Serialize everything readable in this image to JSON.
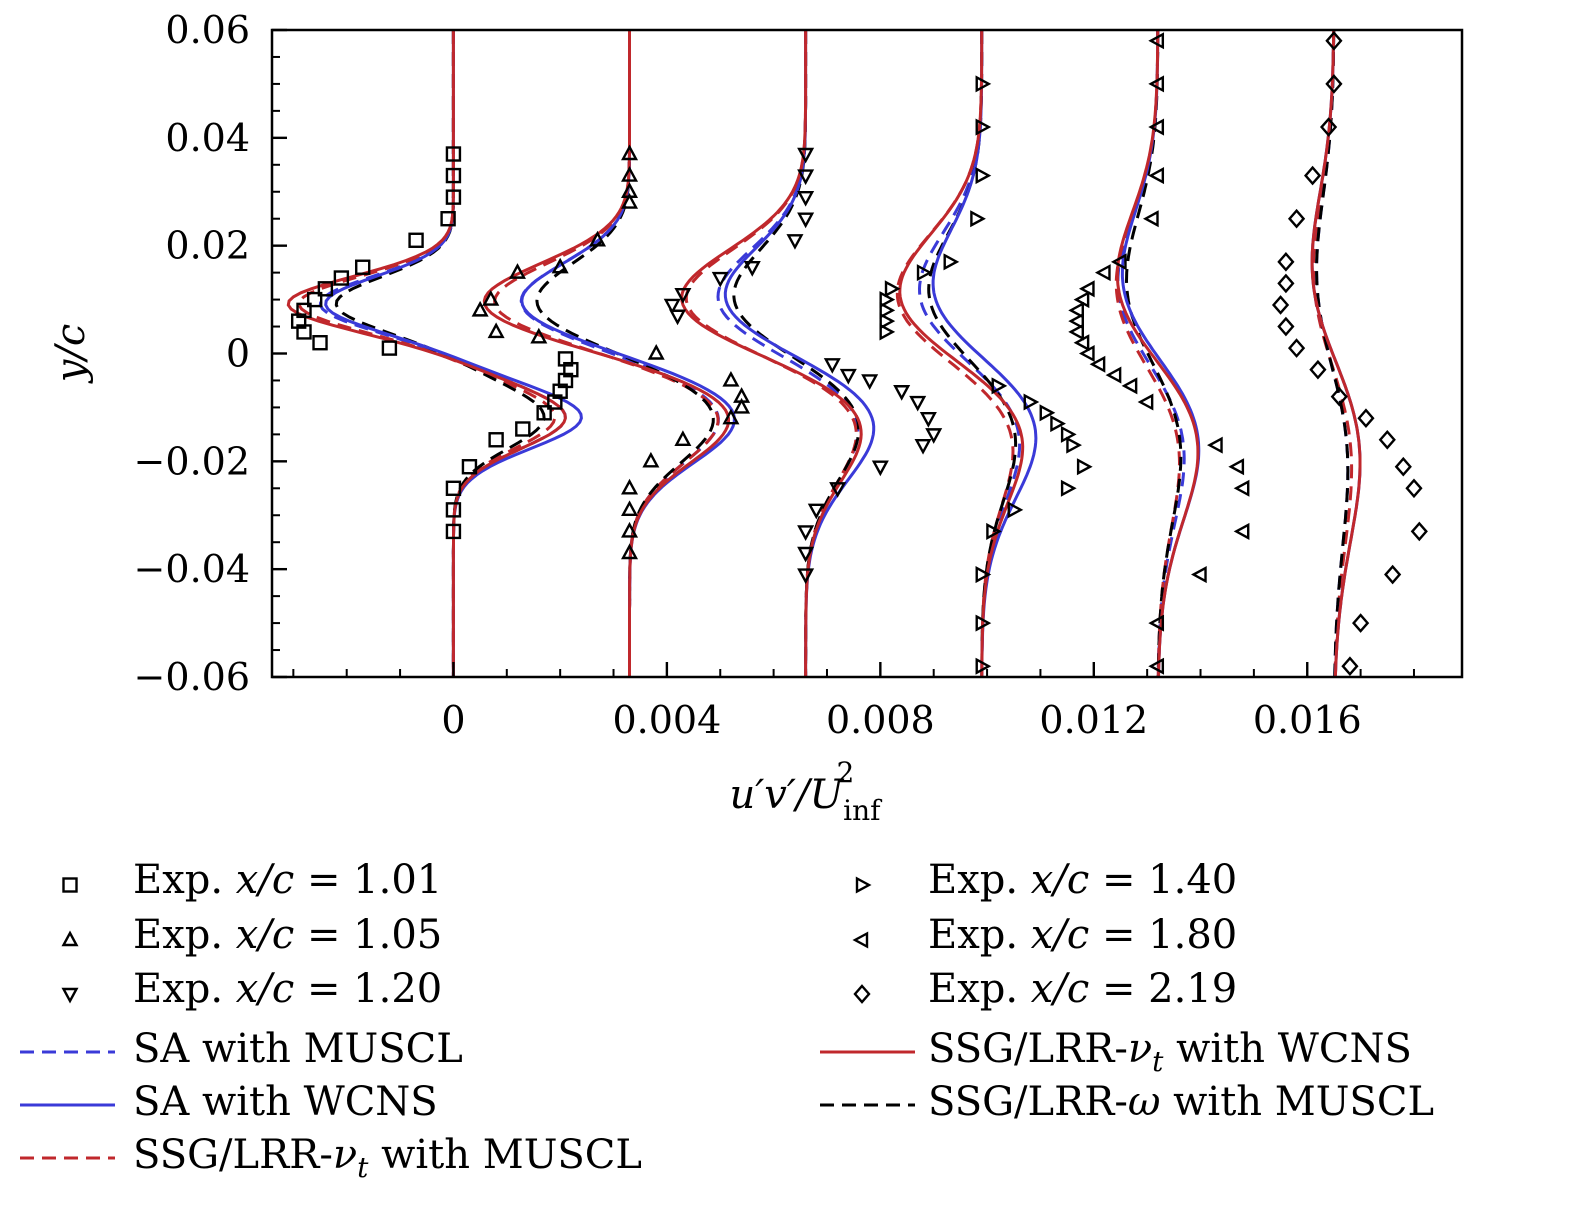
{
  "chart_data": {
    "type": "line",
    "xlabel": "u′v′/U²inf",
    "ylabel": "y/c",
    "xlim": [
      -0.0034,
      0.0189
    ],
    "ylim": [
      -0.06,
      0.06
    ],
    "x_ticks": [
      {
        "value": 0,
        "label": "0"
      },
      {
        "value": 0.004,
        "label": "0.004"
      },
      {
        "value": 0.008,
        "label": "0.008"
      },
      {
        "value": 0.012,
        "label": "0.012"
      },
      {
        "value": 0.016,
        "label": "0.016"
      }
    ],
    "y_ticks": [
      {
        "value": 0.06,
        "label": "0.06"
      },
      {
        "value": 0.04,
        "label": "0.04"
      },
      {
        "value": 0.02,
        "label": "0.02"
      },
      {
        "value": 0,
        "label": "0"
      },
      {
        "value": -0.02,
        "label": "−0.02"
      },
      {
        "value": -0.04,
        "label": "−0.04"
      },
      {
        "value": -0.06,
        "label": "−0.06"
      }
    ],
    "stations": [
      {
        "name": "x/c = 1.01",
        "offset": 0.0,
        "marker": "square"
      },
      {
        "name": "x/c = 1.05",
        "offset": 0.0033,
        "marker": "triangle-up"
      },
      {
        "name": "x/c = 1.20",
        "offset": 0.0066,
        "marker": "triangle-down"
      },
      {
        "name": "x/c = 1.40",
        "offset": 0.0099,
        "marker": "triangle-right"
      },
      {
        "name": "x/c = 1.80",
        "offset": 0.0132,
        "marker": "triangle-left"
      },
      {
        "name": "x/c = 2.19",
        "offset": 0.0165,
        "marker": "diamond"
      }
    ],
    "experiment": [
      {
        "station": "x/c = 1.01",
        "points": [
          [
            0,
            0.037
          ],
          [
            0,
            0.033
          ],
          [
            0,
            0.029
          ],
          [
            -0.0001,
            0.025
          ],
          [
            -0.0007,
            0.021
          ],
          [
            -0.0017,
            0.016
          ],
          [
            -0.0021,
            0.014
          ],
          [
            -0.0024,
            0.012
          ],
          [
            -0.0026,
            0.01
          ],
          [
            -0.0028,
            0.008
          ],
          [
            -0.0029,
            0.006
          ],
          [
            -0.0028,
            0.004
          ],
          [
            -0.0025,
            0.002
          ],
          [
            -0.0012,
            0.001
          ],
          [
            0.0021,
            -0.001
          ],
          [
            0.0022,
            -0.003
          ],
          [
            0.0021,
            -0.005
          ],
          [
            0.002,
            -0.007
          ],
          [
            0.0019,
            -0.009
          ],
          [
            0.0017,
            -0.011
          ],
          [
            0.0013,
            -0.014
          ],
          [
            0.0008,
            -0.016
          ],
          [
            0.0003,
            -0.021
          ],
          [
            0,
            -0.025
          ],
          [
            0,
            -0.029
          ],
          [
            0,
            -0.033
          ]
        ]
      },
      {
        "station": "x/c = 1.05",
        "points": [
          [
            0,
            0.037
          ],
          [
            0,
            0.033
          ],
          [
            0,
            0.03
          ],
          [
            0,
            0.028
          ],
          [
            -0.0006,
            0.021
          ],
          [
            -0.0013,
            0.016
          ],
          [
            -0.0021,
            0.015
          ],
          [
            -0.0026,
            0.01
          ],
          [
            -0.0028,
            0.008
          ],
          [
            -0.0025,
            0.004
          ],
          [
            -0.0017,
            0.003
          ],
          [
            0.0005,
            0.0
          ],
          [
            0.0019,
            -0.005
          ],
          [
            0.0021,
            -0.008
          ],
          [
            0.0021,
            -0.01
          ],
          [
            0.0019,
            -0.012
          ],
          [
            0.001,
            -0.016
          ],
          [
            0.0004,
            -0.02
          ],
          [
            0,
            -0.025
          ],
          [
            0,
            -0.029
          ],
          [
            0,
            -0.033
          ],
          [
            0,
            -0.037
          ]
        ]
      },
      {
        "station": "x/c = 1.20",
        "points": [
          [
            0,
            0.037
          ],
          [
            0,
            0.033
          ],
          [
            0,
            0.029
          ],
          [
            0,
            0.025
          ],
          [
            -0.0002,
            0.021
          ],
          [
            -0.001,
            0.016
          ],
          [
            -0.0016,
            0.014
          ],
          [
            -0.0023,
            0.011
          ],
          [
            -0.0025,
            0.009
          ],
          [
            -0.0024,
            0.007
          ],
          [
            0.0005,
            -0.002
          ],
          [
            0.0008,
            -0.004
          ],
          [
            0.0012,
            -0.005
          ],
          [
            0.0018,
            -0.007
          ],
          [
            0.0021,
            -0.009
          ],
          [
            0.0023,
            -0.012
          ],
          [
            0.0024,
            -0.015
          ],
          [
            0.0022,
            -0.017
          ],
          [
            0.0014,
            -0.021
          ],
          [
            0.0006,
            -0.025
          ],
          [
            0.0002,
            -0.029
          ],
          [
            0,
            -0.033
          ],
          [
            0,
            -0.037
          ],
          [
            0,
            -0.041
          ]
        ]
      },
      {
        "station": "x/c = 1.40",
        "points": [
          [
            0,
            0.05
          ],
          [
            0,
            0.042
          ],
          [
            0,
            0.033
          ],
          [
            -0.0001,
            0.025
          ],
          [
            -0.0006,
            0.017
          ],
          [
            -0.0011,
            0.015
          ],
          [
            -0.0017,
            0.012
          ],
          [
            -0.0018,
            0.01
          ],
          [
            -0.0018,
            0.008
          ],
          [
            -0.0018,
            0.006
          ],
          [
            -0.0018,
            0.004
          ],
          [
            0.0003,
            -0.006
          ],
          [
            0.0009,
            -0.009
          ],
          [
            0.0012,
            -0.011
          ],
          [
            0.0014,
            -0.013
          ],
          [
            0.0016,
            -0.015
          ],
          [
            0.0017,
            -0.017
          ],
          [
            0.0019,
            -0.021
          ],
          [
            0.0016,
            -0.025
          ],
          [
            0.0006,
            -0.029
          ],
          [
            0.0002,
            -0.033
          ],
          [
            0,
            -0.041
          ],
          [
            0,
            -0.05
          ],
          [
            0,
            -0.058
          ]
        ]
      },
      {
        "station": "x/c = 1.80",
        "points": [
          [
            0,
            0.058
          ],
          [
            0,
            0.05
          ],
          [
            0,
            0.042
          ],
          [
            0,
            0.033
          ],
          [
            -0.0001,
            0.025
          ],
          [
            -0.0007,
            0.017
          ],
          [
            -0.001,
            0.015
          ],
          [
            -0.0013,
            0.012
          ],
          [
            -0.0014,
            0.01
          ],
          [
            -0.0015,
            0.008
          ],
          [
            -0.0015,
            0.006
          ],
          [
            -0.0015,
            0.004
          ],
          [
            -0.0014,
            0.002
          ],
          [
            -0.0013,
            0.0
          ],
          [
            -0.0011,
            -0.002
          ],
          [
            -0.0008,
            -0.004
          ],
          [
            -0.0005,
            -0.006
          ],
          [
            -0.0002,
            -0.009
          ],
          [
            0.0011,
            -0.017
          ],
          [
            0.0015,
            -0.021
          ],
          [
            0.0016,
            -0.025
          ],
          [
            0.0016,
            -0.033
          ],
          [
            0.0008,
            -0.041
          ],
          [
            0,
            -0.05
          ],
          [
            0,
            -0.058
          ]
        ]
      },
      {
        "station": "x/c = 2.19",
        "points": [
          [
            0,
            0.058
          ],
          [
            0,
            0.05
          ],
          [
            -0.0001,
            0.042
          ],
          [
            -0.0004,
            0.033
          ],
          [
            -0.0007,
            0.025
          ],
          [
            -0.0009,
            0.017
          ],
          [
            -0.0009,
            0.013
          ],
          [
            -0.001,
            0.009
          ],
          [
            -0.0009,
            0.005
          ],
          [
            -0.0007,
            0.001
          ],
          [
            -0.0003,
            -0.003
          ],
          [
            0.0001,
            -0.008
          ],
          [
            0.0006,
            -0.012
          ],
          [
            0.001,
            -0.016
          ],
          [
            0.0013,
            -0.021
          ],
          [
            0.0015,
            -0.025
          ],
          [
            0.0016,
            -0.033
          ],
          [
            0.0011,
            -0.041
          ],
          [
            0.0005,
            -0.05
          ],
          [
            0.0003,
            -0.058
          ]
        ]
      }
    ],
    "models": [
      {
        "name": "SA with MUSCL",
        "color": "#3a3ad8",
        "dash": "dashed",
        "peaks": [
          {
            "neg": -0.0025,
            "pos": 0.0021
          },
          {
            "neg": -0.0021,
            "pos": 0.0017
          },
          {
            "neg": -0.0018,
            "pos": 0.0011
          },
          {
            "neg": -0.0014,
            "pos": 0.0009
          },
          {
            "neg": -0.001,
            "pos": 0.0007
          },
          {
            "neg": -0.0005,
            "pos": 0.0004
          }
        ]
      },
      {
        "name": "SA with WCNS",
        "color": "#3a3ad8",
        "dash": "solid",
        "peaks": [
          {
            "neg": -0.0024,
            "pos": 0.0024
          },
          {
            "neg": -0.0021,
            "pos": 0.002
          },
          {
            "neg": -0.0017,
            "pos": 0.0014
          },
          {
            "neg": -0.0012,
            "pos": 0.0012
          },
          {
            "neg": -0.001,
            "pos": 0.001
          },
          {
            "neg": -0.0007,
            "pos": 0.0007
          }
        ]
      },
      {
        "name": "SSG/LRR-νt with MUSCL",
        "color": "#c0282c",
        "dash": "dashed",
        "peaks": [
          {
            "neg": -0.0029,
            "pos": 0.0019
          },
          {
            "neg": -0.0026,
            "pos": 0.0017
          },
          {
            "neg": -0.0024,
            "pos": 0.0011
          },
          {
            "neg": -0.0018,
            "pos": 0.0008
          },
          {
            "neg": -0.001,
            "pos": 0.0006
          },
          {
            "neg": -0.0006,
            "pos": 0.0005
          }
        ]
      },
      {
        "name": "SSG/LRR-νt with WCNS",
        "color": "#c0282c",
        "dash": "solid",
        "peaks": [
          {
            "neg": -0.0031,
            "pos": 0.0021
          },
          {
            "neg": -0.0028,
            "pos": 0.0019
          },
          {
            "neg": -0.0025,
            "pos": 0.0012
          },
          {
            "neg": -0.0018,
            "pos": 0.001
          },
          {
            "neg": -0.0011,
            "pos": 0.001
          },
          {
            "neg": -0.0007,
            "pos": 0.0007
          }
        ]
      },
      {
        "name": "SSG/LRR-ω with MUSCL",
        "color": "#000000",
        "dash": "dashed",
        "peaks": [
          {
            "neg": -0.0022,
            "pos": 0.0017
          },
          {
            "neg": -0.0018,
            "pos": 0.0016
          },
          {
            "neg": -0.0015,
            "pos": 0.0011
          },
          {
            "neg": -0.0012,
            "pos": 0.0008
          },
          {
            "neg": -0.0008,
            "pos": 0.0006
          },
          {
            "neg": -0.0005,
            "pos": 0.0004
          }
        ]
      }
    ],
    "legend": {
      "placement": "bottom",
      "entries": [
        {
          "symbol": "square",
          "prefix": "Exp.",
          "var": "x/c",
          "value": "1.01"
        },
        {
          "symbol": "triangle-up",
          "prefix": "Exp.",
          "var": "x/c",
          "value": "1.05"
        },
        {
          "symbol": "triangle-down",
          "prefix": "Exp.",
          "var": "x/c",
          "value": "1.20"
        },
        {
          "symbol": "triangle-right",
          "prefix": "Exp.",
          "var": "x/c",
          "value": "1.40"
        },
        {
          "symbol": "triangle-left",
          "prefix": "Exp.",
          "var": "x/c",
          "value": "1.80"
        },
        {
          "symbol": "diamond",
          "prefix": "Exp.",
          "var": "x/c",
          "value": "2.19"
        },
        {
          "line": "SA with MUSCL",
          "label": "SA with MUSCL"
        },
        {
          "line": "SA with WCNS",
          "label": "SA with WCNS"
        },
        {
          "line": "SSG/LRR-νt with MUSCL",
          "label_pre": "SSG/LRR-",
          "nu": "ν",
          "sub": "t",
          "label_post": " with MUSCL"
        },
        {
          "line": "SSG/LRR-νt with WCNS",
          "label_pre": "SSG/LRR-",
          "nu": "ν",
          "sub": "t",
          "label_post": " with WCNS"
        },
        {
          "line": "SSG/LRR-ω with MUSCL",
          "label_pre": "SSG/LRR-",
          "nu": "ω",
          "label_post": " with MUSCL"
        }
      ]
    }
  }
}
